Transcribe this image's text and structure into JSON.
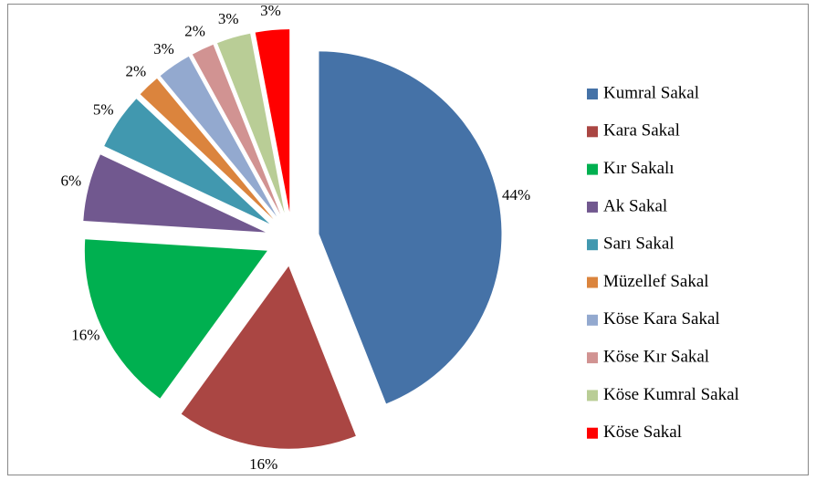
{
  "chart_data": {
    "type": "pie",
    "categories": [
      "Kumral Sakal",
      "Kara Sakal",
      "Kır Sakalı",
      "Ak Sakal",
      "Sarı Sakal",
      "Müzellef Sakal",
      "Köse Kara Sakal",
      "Köse Kır Sakal",
      "Köse Kumral Sakal",
      "Köse Sakal"
    ],
    "values": [
      44,
      16,
      16,
      6,
      5,
      2,
      3,
      2,
      3,
      3
    ],
    "value_labels": [
      "44%",
      "16%",
      "16%",
      "6%",
      "5%",
      "2%",
      "3%",
      "2%",
      "3%",
      "3%"
    ],
    "colors": [
      "#4572a7",
      "#aa4643",
      "#00b050",
      "#71588f",
      "#4198af",
      "#db843d",
      "#93a9cf",
      "#d19392",
      "#b9cd96",
      "#ff0000"
    ],
    "legend": "right"
  }
}
